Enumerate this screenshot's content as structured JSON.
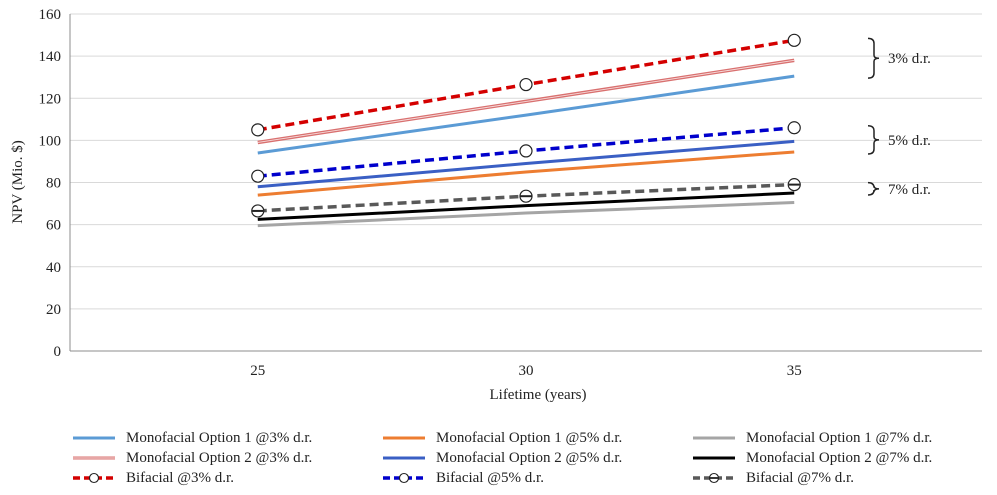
{
  "chart_data": {
    "type": "line",
    "title": "",
    "xlabel": "Lifetime (years)",
    "ylabel": "NPV (Mio. $)",
    "x": [
      25,
      30,
      35
    ],
    "x_ticks": [
      "25",
      "30",
      "35"
    ],
    "y_ticks": [
      "0",
      "20",
      "40",
      "60",
      "80",
      "100",
      "120",
      "140",
      "160"
    ],
    "xlim": [
      21.5,
      38.5
    ],
    "ylim": [
      0,
      160
    ],
    "grid": "horizontal",
    "legend_placement": "bottom",
    "series": [
      {
        "name": "Monofacial Option 1 @3% d.r.",
        "values": [
          94,
          112,
          130.5
        ],
        "color": "#5b9bd5",
        "style": "solid",
        "marker": "none",
        "width": 3
      },
      {
        "name": "Monofacial Option 1 @5% d.r.",
        "values": [
          74,
          85,
          94.5
        ],
        "color": "#ed7d31",
        "style": "solid",
        "marker": "none",
        "width": 3
      },
      {
        "name": "Monofacial Option 1 @7% d.r.",
        "values": [
          59.5,
          65.5,
          70.5
        ],
        "color": "#a5a5a5",
        "style": "solid",
        "marker": "none",
        "width": 3
      },
      {
        "name": "Monofacial Option 2 @3% d.r.",
        "values": [
          99,
          118.5,
          138
        ],
        "color": "#d9706f",
        "style": "double",
        "marker": "none",
        "width": 3
      },
      {
        "name": "Monofacial Option 2 @5% d.r.",
        "values": [
          78,
          89,
          99.5
        ],
        "color": "#3a5fc4",
        "style": "solid",
        "marker": "none",
        "width": 3
      },
      {
        "name": "Monofacial Option 2 @7% d.r.",
        "values": [
          62.5,
          69,
          75
        ],
        "color": "#000000",
        "style": "solid",
        "marker": "none",
        "width": 3
      },
      {
        "name": "Bifacial @3% d.r.",
        "values": [
          105,
          126.5,
          147.5
        ],
        "color": "#d40000",
        "style": "dashed",
        "marker": "open-circle",
        "width": 3.5
      },
      {
        "name": "Bifacial @5% d.r.",
        "values": [
          83,
          95,
          106
        ],
        "color": "#0000cc",
        "style": "dashed",
        "marker": "open-circle",
        "width": 3.5
      },
      {
        "name": "Bifacial @7% d.r.",
        "values": [
          66.5,
          73.5,
          79
        ],
        "color": "#595959",
        "style": "dashed",
        "marker": "crossed-circle",
        "width": 3.5
      }
    ],
    "annotations": [
      {
        "text": "3% d.r.",
        "y_range": [
          130.5,
          147.5
        ]
      },
      {
        "text": "5% d.r.",
        "y_range": [
          94.5,
          106
        ]
      },
      {
        "text": "7% d.r.",
        "y_range": [
          75,
          79
        ]
      }
    ]
  }
}
